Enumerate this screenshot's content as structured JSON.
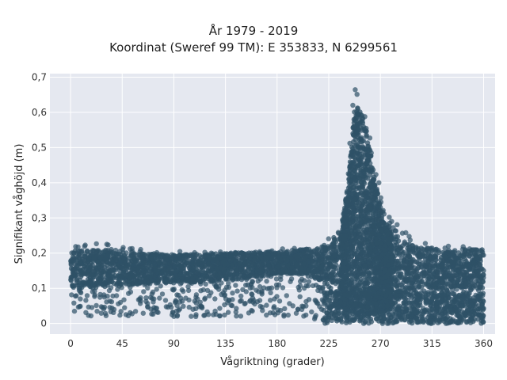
{
  "chart_data": {
    "type": "scatter",
    "title": "År 1979 - 2019",
    "subtitle": "Koordinat (Sweref 99 TM): E 353833, N 6299561",
    "xlabel": "Vågriktning (grader)",
    "ylabel": "Signifikant våghöjd (m)",
    "xlim": [
      -18,
      370
    ],
    "ylim": [
      -0.03,
      0.71
    ],
    "xticks": [
      0,
      45,
      90,
      135,
      180,
      225,
      270,
      315,
      360
    ],
    "xtick_labels": [
      "0",
      "45",
      "90",
      "135",
      "180",
      "225",
      "270",
      "315",
      "360"
    ],
    "yticks": [
      0,
      0.1,
      0.2,
      0.3,
      0.4,
      0.5,
      0.6,
      0.7
    ],
    "ytick_labels": [
      "0",
      "0,1",
      "0,2",
      "0,3",
      "0,4",
      "0,5",
      "0,6",
      "0,7"
    ],
    "grid": true,
    "point_color": "#2f5167",
    "background_color": "#e5e8f0",
    "envelope": {
      "x": [
        0,
        20,
        45,
        90,
        135,
        180,
        200,
        220,
        235,
        242,
        247,
        252,
        258,
        265,
        272,
        280,
        290,
        300,
        315,
        330,
        345,
        360
      ],
      "upper": [
        0.22,
        0.23,
        0.22,
        0.21,
        0.205,
        0.21,
        0.22,
        0.23,
        0.27,
        0.45,
        0.68,
        0.68,
        0.6,
        0.47,
        0.36,
        0.3,
        0.27,
        0.25,
        0.23,
        0.22,
        0.22,
        0.22
      ],
      "lower": [
        0.02,
        0.02,
        0.02,
        0.02,
        0.02,
        0.02,
        0.02,
        0.0,
        0.0,
        0.0,
        0.0,
        0.0,
        0.0,
        0.0,
        0.0,
        0.0,
        0.0,
        0.0,
        0.0,
        0.0,
        0.0,
        0.02
      ],
      "core_upper": [
        0.21,
        0.21,
        0.2,
        0.195,
        0.2,
        0.205,
        0.21,
        0.22,
        0.26,
        0.4,
        0.6,
        0.62,
        0.55,
        0.42,
        0.3,
        0.26,
        0.23,
        0.22,
        0.215,
        0.21,
        0.21,
        0.21
      ],
      "core_lower": [
        0.1,
        0.1,
        0.11,
        0.115,
        0.12,
        0.14,
        0.14,
        0.12,
        0.05,
        0.03,
        0.03,
        0.03,
        0.03,
        0.03,
        0.03,
        0.05,
        0.08,
        0.1,
        0.1,
        0.1,
        0.1,
        0.1
      ]
    }
  }
}
